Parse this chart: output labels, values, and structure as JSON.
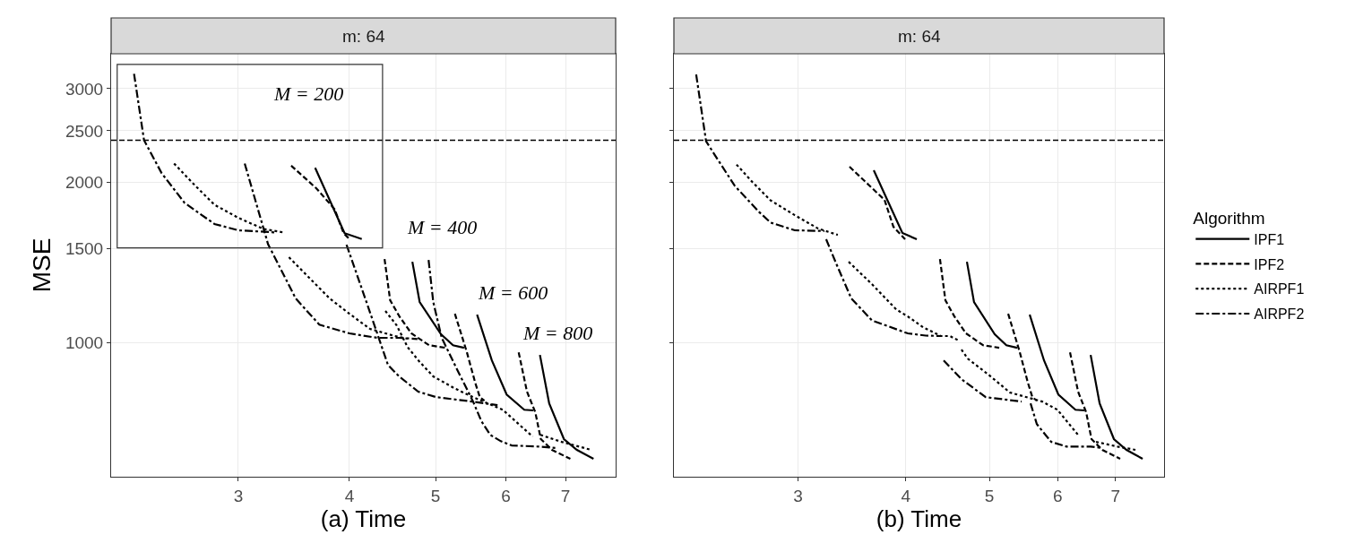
{
  "chart_data": [
    {
      "type": "line",
      "title": "m: 64",
      "xlabel": "(a) Time",
      "ylabel": "MSE",
      "log": "xy",
      "grid": true,
      "legend": "right",
      "xlim": [
        2.158,
        7.97
      ],
      "xticks": [
        3,
        4,
        5,
        6,
        7
      ],
      "ylim": [
        559,
        3490
      ],
      "yticks": [
        1000,
        1500,
        2000,
        2500,
        3000
      ],
      "ref_lines": [
        {
          "axis": "y",
          "value": 2400,
          "color": "#000000",
          "line_style": "dashed"
        }
      ],
      "annotations": [
        "M = 200",
        "M = 400",
        "M = 600",
        "M = 800"
      ],
      "series": [
        {
          "name": "IPF1",
          "color": "#000000",
          "line_style": "solid",
          "x": [
            3.66,
            3.95,
            4.13,
            null,
            4.708,
            4.798,
            5.071,
            5.231,
            5.383,
            null,
            5.567,
            5.784,
            6.01,
            6.29,
            6.442,
            null,
            6.551,
            6.71,
            6.971,
            7.208,
            7.526
          ],
          "values": [
            2130,
            1605,
            1565,
            null,
            1418,
            1191,
            1036,
            988,
            977,
            null,
            1128,
            925,
            798,
            747,
            745,
            null,
            947,
            768,
            658,
            628,
            604
          ]
        },
        {
          "name": "IPF2",
          "color": "#000000",
          "line_style": "dashed",
          "x": [
            3.44,
            3.67,
            3.85,
            3.94,
            4.0,
            null,
            4.381,
            4.445,
            4.553,
            4.696,
            4.915,
            5.132,
            null,
            5.256,
            5.344,
            5.422,
            5.54,
            5.607,
            5.674,
            null,
            6.2,
            6.335,
            6.473,
            6.566,
            6.758,
            7.088
          ],
          "values": [
            2150,
            1950,
            1780,
            1605,
            1565,
            null,
            1435,
            1200,
            1119,
            1040,
            988,
            977,
            null,
            1132,
            1036,
            958,
            840,
            789,
            777,
            null,
            958,
            808,
            739,
            658,
            628,
            604
          ]
        },
        {
          "name": "AIRPF1",
          "color": "#000000",
          "line_style": "dotted",
          "x": [
            2.54,
            2.68,
            2.82,
            3.0,
            3.2,
            3.37,
            null,
            3.42,
            3.8,
            4.0,
            4.22,
            4.5,
            4.65,
            null,
            4.39,
            4.52,
            4.65,
            4.79,
            4.97,
            5.25,
            5.5,
            5.95,
            6.26,
            6.43,
            null,
            6.56,
            6.93,
            7.48
          ],
          "values": [
            2170,
            1975,
            1815,
            1715,
            1635,
            1610,
            null,
            1446,
            1210,
            1132,
            1060,
            1028,
            1016,
            null,
            1146,
            1077,
            980,
            922,
            863,
            820,
            790,
            747,
            692,
            665,
            null,
            670,
            650,
            628
          ]
        },
        {
          "name": "AIRPF2",
          "color": "#000000",
          "line_style": "dashdot",
          "x": [
            2.29,
            2.35,
            2.46,
            2.61,
            2.82,
            3.0,
            3.3,
            null,
            3.05,
            3.24,
            3.48,
            3.7,
            4.0,
            4.3,
            4.55,
            4.77,
            null,
            3.97,
            4.19,
            4.42,
            4.55,
            4.78,
            5.01,
            5.5,
            5.87,
            null,
            4.91,
            4.97,
            5.08,
            5.29,
            5.51,
            5.63,
            5.76,
            5.92,
            6.09,
            6.53,
            6.83
          ],
          "values": [
            3200,
            2400,
            2080,
            1830,
            1670,
            1625,
            1610,
            null,
            2170,
            1530,
            1210,
            1080,
            1040,
            1020,
            1020,
            1015,
            null,
            1527,
            1178,
            907,
            863,
            808,
            789,
            774,
            762,
            null,
            1429,
            1191,
            1020,
            887,
            774,
            711,
            670,
            652,
            640,
            637,
            633
          ]
        }
      ]
    },
    {
      "type": "line",
      "title": "m: 64",
      "xlabel": "(b) Time",
      "log": "xy",
      "grid": true,
      "legend": "right",
      "legend_title": "Algorithm",
      "tick_labels": "x",
      "xlim": [
        2.153,
        7.97
      ],
      "xticks": [
        3,
        4,
        5,
        6,
        7
      ],
      "ylim": [
        559,
        3490
      ],
      "yticks": [
        1000,
        1500,
        2000,
        2500,
        3000
      ],
      "ref_lines": [
        {
          "axis": "y",
          "value": 2400,
          "color": "#000000",
          "line_style": "dashed"
        }
      ],
      "series": [
        {
          "name": "IPF1",
          "color": "#000000",
          "line_style": "solid",
          "x": [
            3.671,
            3.963,
            4.118,
            null,
            4.708,
            4.798,
            5.071,
            5.231,
            5.383,
            null,
            5.567,
            5.784,
            6.01,
            6.29,
            6.442,
            null,
            6.551,
            6.71,
            6.971,
            7.208,
            7.526
          ],
          "values": [
            2107,
            1606,
            1563,
            null,
            1418,
            1191,
            1036,
            988,
            977,
            null,
            1128,
            925,
            798,
            747,
            745,
            null,
            947,
            768,
            658,
            628,
            604
          ]
        },
        {
          "name": "IPF2",
          "color": "#000000",
          "line_style": "dashed",
          "x": [
            3.441,
            3.778,
            3.869,
            3.992,
            null,
            4.381,
            4.445,
            4.553,
            4.696,
            4.915,
            5.132,
            null,
            5.256,
            5.344,
            5.422,
            5.54,
            5.607,
            5.674,
            null,
            6.2,
            6.335,
            6.473,
            6.566,
            6.758,
            7.088
          ],
          "values": [
            2140,
            1854,
            1650,
            1563,
            null,
            1435,
            1200,
            1119,
            1040,
            988,
            977,
            null,
            1132,
            1036,
            958,
            840,
            789,
            777,
            null,
            958,
            808,
            739,
            658,
            628,
            604
          ]
        },
        {
          "name": "AIRPF1",
          "color": "#000000",
          "line_style": "dotted",
          "x": [
            2.545,
            2.657,
            2.787,
            2.973,
            3.165,
            3.335,
            null,
            3.433,
            3.653,
            3.897,
            4.02,
            4.187,
            4.288,
            4.392,
            4.498,
            4.607,
            null,
            4.64,
            4.719,
            4.986,
            5.281,
            5.756,
            5.996,
            6.186,
            6.335,
            null,
            6.646,
            7.037,
            7.383
          ],
          "values": [
            2160,
            2000,
            1850,
            1735,
            1637,
            1593,
            null,
            1418,
            1287,
            1154,
            1119,
            1068,
            1048,
            1028,
            1028,
            1008,
            null,
            969,
            932,
            870,
            805,
            774,
            747,
            702,
            670,
            null,
            650,
            637,
            628
          ]
        },
        {
          "name": "AIRPF2",
          "color": "#000000",
          "line_style": "dashdot",
          "x": [
            2.285,
            2.346,
            2.415,
            2.533,
            2.702,
            2.787,
            2.973,
            3.218,
            null,
            3.233,
            3.319,
            3.457,
            3.653,
            4.02,
            4.217,
            4.392,
            null,
            4.424,
            4.64,
            4.95,
            5.448,
            null,
            5.58,
            5.674,
            5.896,
            6.141,
            6.551,
            6.758
          ],
          "values": [
            3190,
            2390,
            2220,
            1970,
            1760,
            1680,
            1625,
            1620,
            null,
            1563,
            1410,
            1210,
            1100,
            1040,
            1030,
            1028,
            null,
            925,
            853,
            789,
            774,
            null,
            768,
            702,
            650,
            637,
            637,
            633
          ]
        }
      ]
    }
  ]
}
